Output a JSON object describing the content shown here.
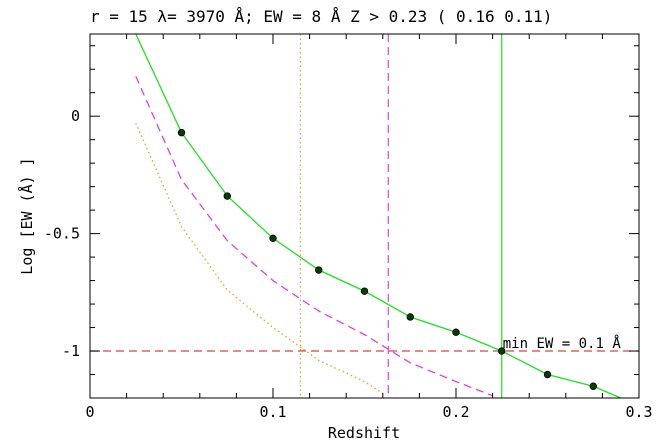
{
  "chart_data": {
    "type": "line",
    "title": "r = 15 λ= 3970 Å; EW = 8 Å   Z >  0.23 ( 0.16  0.11)",
    "xlabel": "Redshift",
    "ylabel": "Log [EW (Å) ]",
    "xlim": [
      0,
      0.3
    ],
    "ylim": [
      -1.2,
      0.35
    ],
    "x_ticks": [
      0,
      0.1,
      0.2,
      0.3
    ],
    "x_tick_labels": [
      "0",
      "0.1",
      "0.2",
      "0.3"
    ],
    "y_ticks": [
      -1,
      -0.5,
      0
    ],
    "y_tick_labels": [
      "-1",
      "-0.5",
      "0"
    ],
    "grid": false,
    "series": [
      {
        "style": "solid",
        "color": "#22dd22",
        "markers": true,
        "points": [
          [
            0.025,
            0.35
          ],
          [
            0.05,
            -0.07
          ],
          [
            0.075,
            -0.34
          ],
          [
            0.1,
            -0.52
          ],
          [
            0.125,
            -0.655
          ],
          [
            0.15,
            -0.745
          ],
          [
            0.175,
            -0.855
          ],
          [
            0.2,
            -0.92
          ],
          [
            0.225,
            -1.0
          ],
          [
            0.25,
            -1.1
          ],
          [
            0.275,
            -1.15
          ],
          [
            0.29,
            -1.2
          ]
        ]
      },
      {
        "style": "dashed",
        "color": "#e040e0",
        "markers": false,
        "points": [
          [
            0.025,
            0.17
          ],
          [
            0.05,
            -0.27
          ],
          [
            0.075,
            -0.53
          ],
          [
            0.1,
            -0.7
          ],
          [
            0.125,
            -0.83
          ],
          [
            0.15,
            -0.93
          ],
          [
            0.175,
            -1.05
          ],
          [
            0.2,
            -1.13
          ],
          [
            0.22,
            -1.19
          ]
        ]
      },
      {
        "style": "dotted",
        "color": "#e8a020",
        "markers": false,
        "points": [
          [
            0.025,
            -0.03
          ],
          [
            0.05,
            -0.47
          ],
          [
            0.075,
            -0.74
          ],
          [
            0.1,
            -0.9
          ],
          [
            0.125,
            -1.04
          ],
          [
            0.15,
            -1.13
          ],
          [
            0.16,
            -1.18
          ]
        ]
      }
    ],
    "vertical_lines": [
      {
        "x": 0.115,
        "style": "dotted",
        "color": "#e8a020"
      },
      {
        "x": 0.163,
        "style": "dashed",
        "color": "#e040e0"
      },
      {
        "x": 0.225,
        "style": "solid",
        "color": "#22dd22"
      }
    ],
    "horizontal_lines": [
      {
        "y": -1,
        "style": "dashed",
        "color": "#e04040"
      }
    ],
    "annotations": [
      {
        "text": "min EW = 0.1 Å",
        "x": 0.225,
        "y": -1
      }
    ]
  }
}
